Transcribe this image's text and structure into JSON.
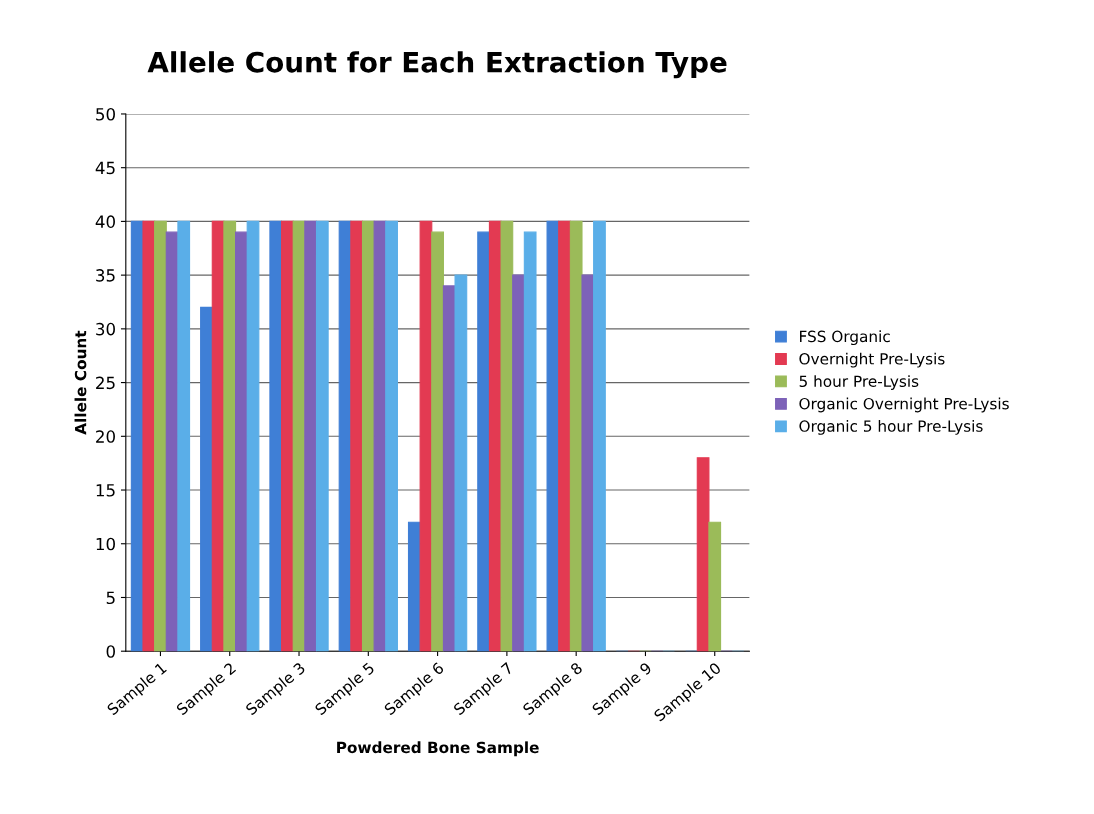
{
  "chart_data": {
    "type": "bar",
    "title": "Allele Count for Each Extraction Type",
    "xlabel": "Powdered Bone Sample",
    "ylabel": "Allele Count",
    "categories": [
      "Sample 1",
      "Sample 2",
      "Sample 3",
      "Sample 5",
      "Sample 6",
      "Sample 7",
      "Sample 8",
      "Sample 9",
      "Sample 10"
    ],
    "series": [
      {
        "name": "FSS Organic",
        "color": "#3f7fd6",
        "values": [
          40,
          32,
          40,
          40,
          12,
          39,
          40,
          0,
          0
        ]
      },
      {
        "name": "Overnight Pre-Lysis",
        "color": "#e33a52",
        "values": [
          40,
          40,
          40,
          40,
          40,
          40,
          40,
          0,
          18
        ]
      },
      {
        "name": "5 hour Pre-Lysis",
        "color": "#9bbb59",
        "values": [
          40,
          40,
          40,
          40,
          39,
          40,
          40,
          0,
          12
        ]
      },
      {
        "name": "Organic Overnight Pre-Lysis",
        "color": "#7d62b8",
        "values": [
          39,
          39,
          40,
          40,
          34,
          35,
          35,
          0,
          0
        ]
      },
      {
        "name": "Organic 5 hour Pre-Lysis",
        "color": "#5aaee8",
        "values": [
          40,
          40,
          40,
          40,
          35,
          39,
          40,
          0,
          0
        ]
      }
    ],
    "ylim": [
      0,
      50
    ],
    "yticks": [
      0,
      5,
      10,
      15,
      20,
      25,
      30,
      35,
      40,
      45,
      50
    ],
    "grid": "y",
    "legend": "right"
  }
}
